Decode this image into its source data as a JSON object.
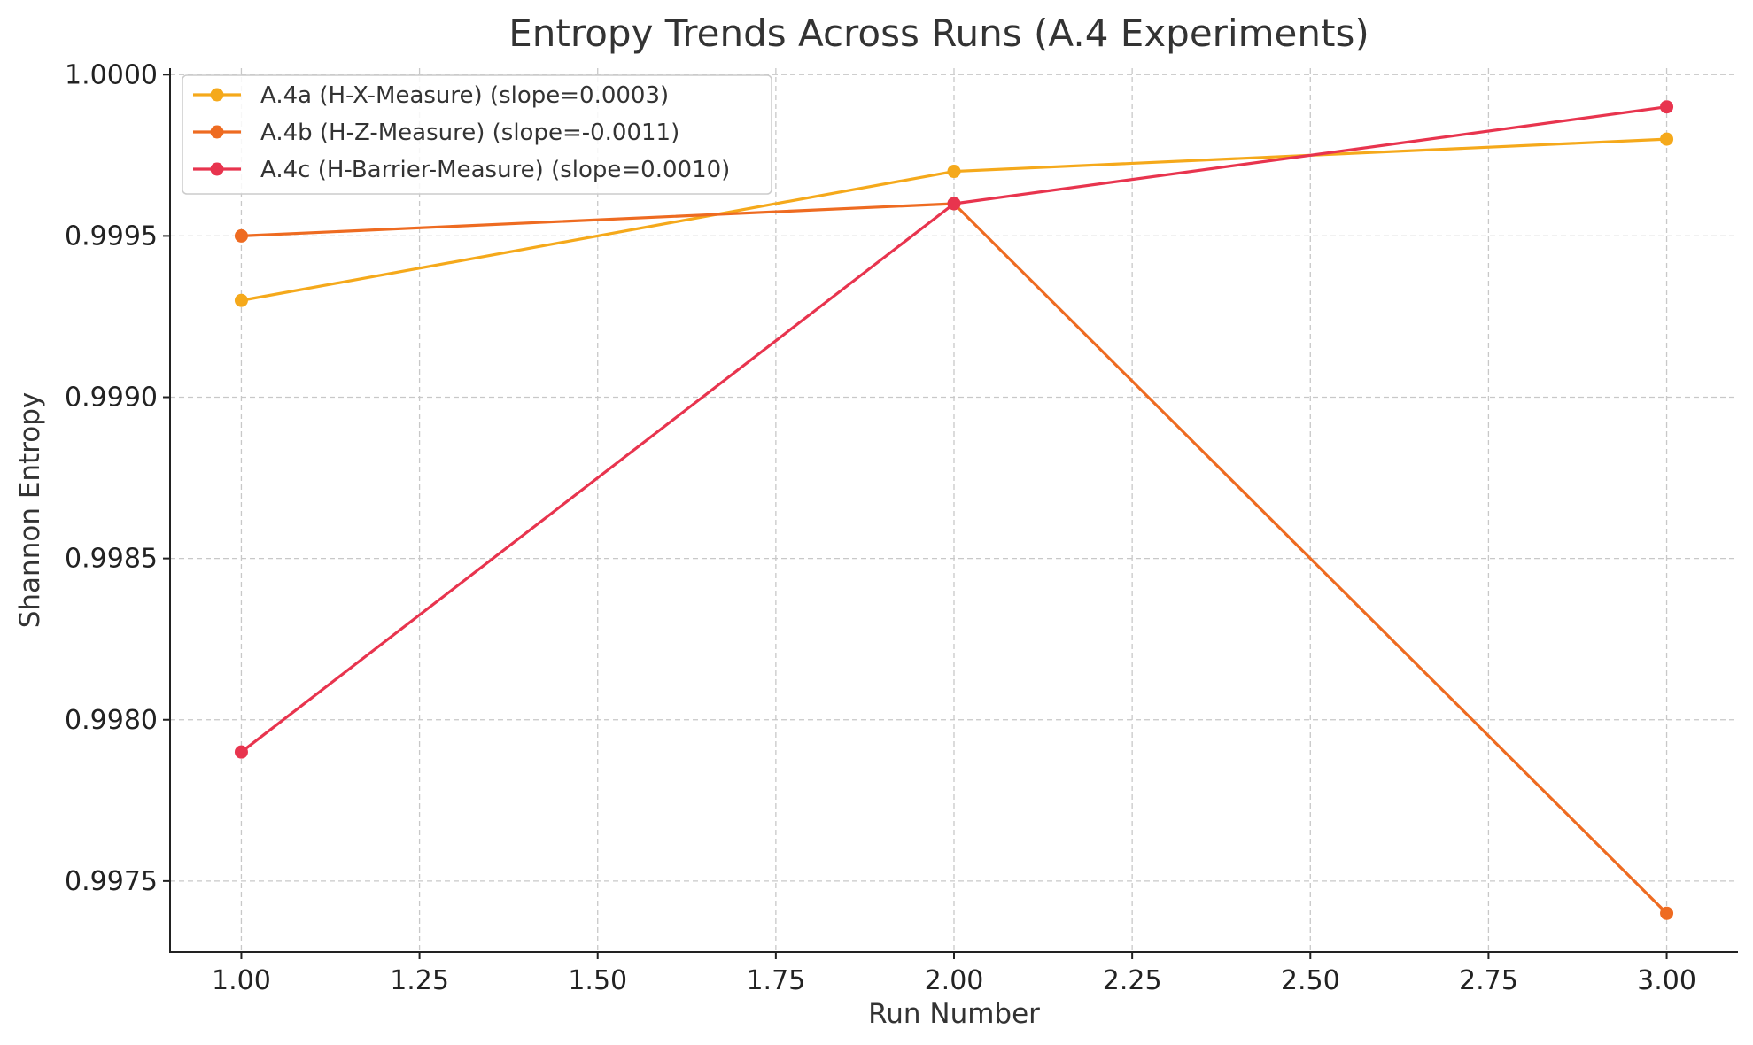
{
  "chart_data": {
    "type": "line",
    "title": "Entropy Trends Across Runs (A.4 Experiments)",
    "xlabel": "Run Number",
    "ylabel": "Shannon Entropy",
    "xlim": [
      0.9,
      3.1
    ],
    "ylim": [
      0.99728,
      1.00002
    ],
    "xticks": [
      1.0,
      1.25,
      1.5,
      1.75,
      2.0,
      2.25,
      2.5,
      2.75,
      3.0
    ],
    "xtick_labels": [
      "1.00",
      "1.25",
      "1.50",
      "1.75",
      "2.00",
      "2.25",
      "2.50",
      "2.75",
      "3.00"
    ],
    "yticks": [
      0.9975,
      0.998,
      0.9985,
      0.999,
      0.9995,
      1.0
    ],
    "ytick_labels": [
      "0.9975",
      "0.9980",
      "0.9985",
      "0.9990",
      "0.9995",
      "1.0000"
    ],
    "grid": true,
    "legend_position": "top-left",
    "x": [
      1,
      2,
      3
    ],
    "series": [
      {
        "name": "A.4a (H-X-Measure) (slope=0.0003)",
        "color": "#f5a91b",
        "values": [
          0.9993,
          0.9997,
          0.9998
        ]
      },
      {
        "name": "A.4b (H-Z-Measure) (slope=-0.0011)",
        "color": "#ee6b21",
        "values": [
          0.9995,
          0.9996,
          0.9974
        ]
      },
      {
        "name": "A.4c (H-Barrier-Measure) (slope=0.0010)",
        "color": "#e8344e",
        "values": [
          0.9979,
          0.9996,
          0.9999
        ]
      }
    ]
  }
}
